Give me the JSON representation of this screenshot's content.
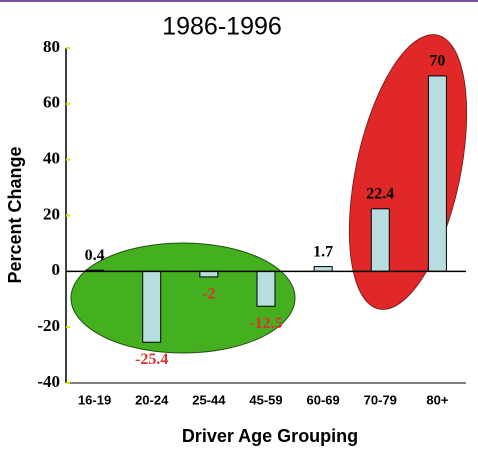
{
  "chart_data": {
    "type": "bar",
    "title": "1986-1996",
    "x_label": "Driver Age Grouping",
    "y_label": "Percent Change",
    "categories": [
      "16-19",
      "20-24",
      "25-44",
      "45-59",
      "60-69",
      "70-79",
      "80+"
    ],
    "values": [
      0.4,
      -25.4,
      -2,
      -12.5,
      1.7,
      22.4,
      70
    ],
    "color": "#b8dde0",
    "label_color": "#000000",
    "negative_label_color": "#e03030",
    "ylim": [
      -40,
      80
    ],
    "yticks": [
      -40,
      -20,
      0,
      20,
      40,
      60,
      80
    ]
  }
}
